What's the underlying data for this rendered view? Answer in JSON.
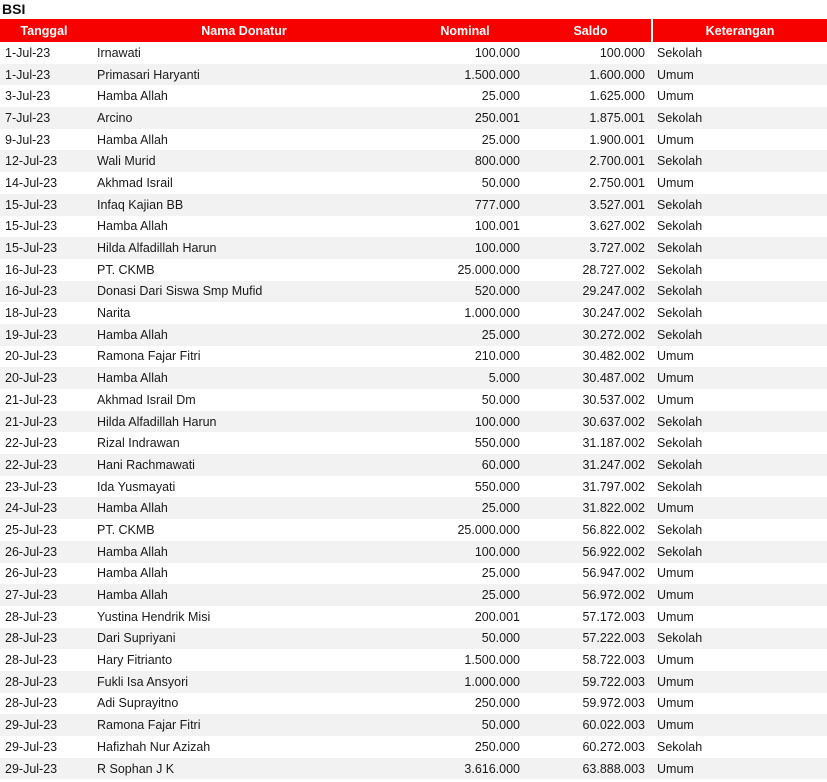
{
  "title": "BSI",
  "colors": {
    "header_bg": "#f70000",
    "header_text": "#ffffff",
    "row_stripe": "#f2f2f2",
    "text": "#1a1a1a"
  },
  "table": {
    "columns": [
      "Tanggal",
      "Nama Donatur",
      "Nominal",
      "Saldo",
      "Keterangan"
    ],
    "rows": [
      [
        "1-Jul-23",
        "Irnawati",
        "100.000",
        "100.000",
        "Sekolah"
      ],
      [
        "1-Jul-23",
        "Primasari Haryanti",
        "1.500.000",
        "1.600.000",
        "Umum"
      ],
      [
        "3-Jul-23",
        "Hamba Allah",
        "25.000",
        "1.625.000",
        "Umum"
      ],
      [
        "7-Jul-23",
        "Arcino",
        "250.001",
        "1.875.001",
        "Sekolah"
      ],
      [
        "9-Jul-23",
        "Hamba Allah",
        "25.000",
        "1.900.001",
        "Umum"
      ],
      [
        "12-Jul-23",
        "Wali Murid",
        "800.000",
        "2.700.001",
        "Sekolah"
      ],
      [
        "14-Jul-23",
        "Akhmad Israil",
        "50.000",
        "2.750.001",
        "Umum"
      ],
      [
        "15-Jul-23",
        "Infaq Kajian BB",
        "777.000",
        "3.527.001",
        "Sekolah"
      ],
      [
        "15-Jul-23",
        "Hamba Allah",
        "100.001",
        "3.627.002",
        "Sekolah"
      ],
      [
        "15-Jul-23",
        "Hilda Alfadillah Harun",
        "100.000",
        "3.727.002",
        "Sekolah"
      ],
      [
        "16-Jul-23",
        "PT. CKMB",
        "25.000.000",
        "28.727.002",
        "Sekolah"
      ],
      [
        "16-Jul-23",
        "Donasi Dari Siswa Smp Mufid",
        "520.000",
        "29.247.002",
        "Sekolah"
      ],
      [
        "18-Jul-23",
        "Narita",
        "1.000.000",
        "30.247.002",
        "Sekolah"
      ],
      [
        "19-Jul-23",
        "Hamba Allah",
        "25.000",
        "30.272.002",
        "Sekolah"
      ],
      [
        "20-Jul-23",
        "Ramona Fajar Fitri",
        "210.000",
        "30.482.002",
        "Umum"
      ],
      [
        "20-Jul-23",
        "Hamba Allah",
        "5.000",
        "30.487.002",
        "Umum"
      ],
      [
        "21-Jul-23",
        "Akhmad Israil Dm",
        "50.000",
        "30.537.002",
        "Umum"
      ],
      [
        "21-Jul-23",
        "Hilda Alfadillah Harun",
        "100.000",
        "30.637.002",
        "Sekolah"
      ],
      [
        "22-Jul-23",
        "Rizal Indrawan",
        "550.000",
        "31.187.002",
        "Sekolah"
      ],
      [
        "22-Jul-23",
        "Hani Rachmawati",
        "60.000",
        "31.247.002",
        "Sekolah"
      ],
      [
        "23-Jul-23",
        "Ida Yusmayati",
        "550.000",
        "31.797.002",
        "Sekolah"
      ],
      [
        "24-Jul-23",
        "Hamba Allah",
        "25.000",
        "31.822.002",
        "Umum"
      ],
      [
        "25-Jul-23",
        "PT. CKMB",
        "25.000.000",
        "56.822.002",
        "Sekolah"
      ],
      [
        "26-Jul-23",
        "Hamba Allah",
        "100.000",
        "56.922.002",
        "Sekolah"
      ],
      [
        "26-Jul-23",
        "Hamba Allah",
        "25.000",
        "56.947.002",
        "Umum"
      ],
      [
        "27-Jul-23",
        "Hamba Allah",
        "25.000",
        "56.972.002",
        "Umum"
      ],
      [
        "28-Jul-23",
        "Yustina Hendrik Misi",
        "200.001",
        "57.172.003",
        "Umum"
      ],
      [
        "28-Jul-23",
        "Dari Supriyani",
        "50.000",
        "57.222.003",
        "Sekolah"
      ],
      [
        "28-Jul-23",
        "Hary Fitrianto",
        "1.500.000",
        "58.722.003",
        "Umum"
      ],
      [
        "28-Jul-23",
        "Fukli Isa Ansyori",
        "1.000.000",
        "59.722.003",
        "Umum"
      ],
      [
        "28-Jul-23",
        "Adi Suprayitno",
        "250.000",
        "59.972.003",
        "Umum"
      ],
      [
        "29-Jul-23",
        "Ramona Fajar Fitri",
        "50.000",
        "60.022.003",
        "Umum"
      ],
      [
        "29-Jul-23",
        "Hafizhah Nur Azizah",
        "250.000",
        "60.272.003",
        "Sekolah"
      ],
      [
        "29-Jul-23",
        "R Sophan J K",
        "3.616.000",
        "63.888.003",
        "Umum"
      ]
    ]
  },
  "chart_data": {
    "type": "table",
    "title": "BSI",
    "columns": [
      "Tanggal",
      "Nama Donatur",
      "Nominal",
      "Saldo",
      "Keterangan"
    ],
    "rows_ref": "table.rows",
    "layout": {
      "striped": true,
      "header_color": "#f70000"
    }
  }
}
